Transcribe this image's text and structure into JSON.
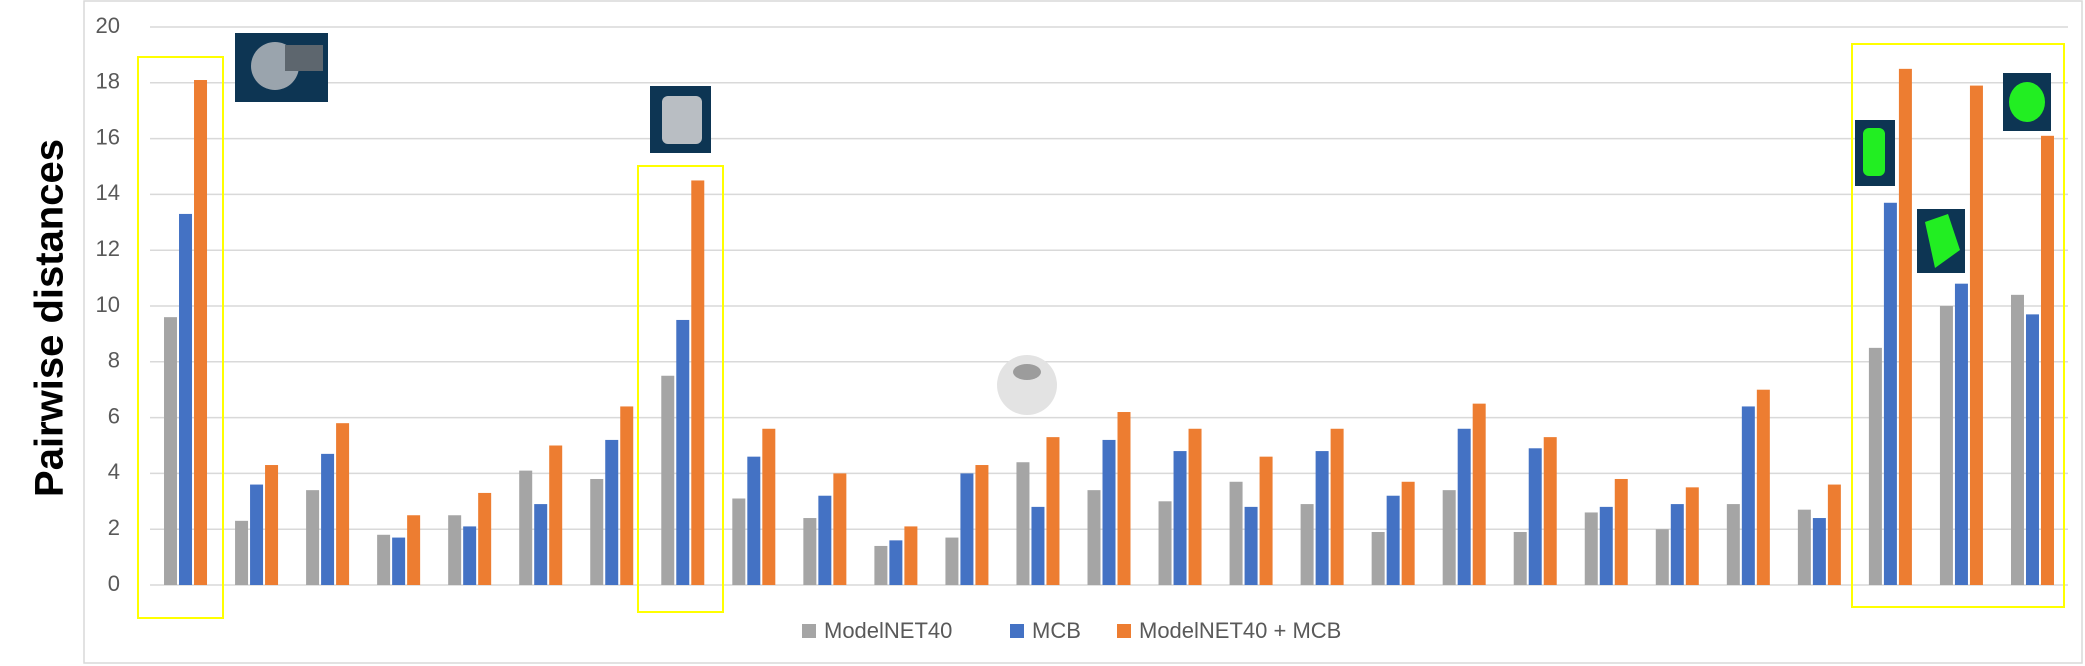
{
  "chart_data": {
    "type": "bar",
    "y_label": "Pairwise distances",
    "categories": [
      null,
      null,
      null,
      null,
      null,
      null,
      null,
      null,
      null,
      null,
      null,
      null,
      null,
      null,
      null,
      null,
      null,
      null,
      null,
      null,
      null,
      null,
      null,
      null,
      null,
      null,
      null
    ],
    "series": [
      {
        "name": "ModelNET40",
        "color": "#a5a5a5",
        "values": [
          9.6,
          2.3,
          3.4,
          1.8,
          2.5,
          4.1,
          3.8,
          7.5,
          3.1,
          2.4,
          1.4,
          1.7,
          4.4,
          3.4,
          3.0,
          3.7,
          2.9,
          1.9,
          3.4,
          1.9,
          2.6,
          2.0,
          2.9,
          2.7,
          8.5,
          10.0,
          10.4
        ]
      },
      {
        "name": "MCB",
        "color": "#4472c4",
        "values": [
          13.3,
          3.6,
          4.7,
          1.7,
          2.1,
          2.9,
          5.2,
          9.5,
          4.6,
          3.2,
          1.6,
          4.0,
          2.8,
          5.2,
          4.8,
          2.8,
          4.8,
          3.2,
          5.6,
          4.9,
          2.8,
          2.9,
          6.4,
          2.4,
          13.7,
          10.8,
          9.7
        ]
      },
      {
        "name": "ModelNET40 + MCB",
        "color": "#ed7d31",
        "values": [
          18.1,
          4.3,
          5.8,
          2.5,
          3.3,
          5.0,
          6.4,
          14.5,
          5.6,
          4.0,
          2.1,
          4.3,
          5.3,
          6.2,
          5.6,
          4.6,
          5.6,
          3.7,
          6.5,
          5.3,
          3.8,
          3.5,
          7.0,
          3.6,
          18.5,
          17.9,
          16.1
        ]
      }
    ],
    "ylim": [
      0,
      20
    ],
    "yticks": [
      0,
      2,
      4,
      6,
      8,
      10,
      12,
      14,
      16,
      18,
      20
    ],
    "grid": true,
    "legend": "bottom"
  }
}
